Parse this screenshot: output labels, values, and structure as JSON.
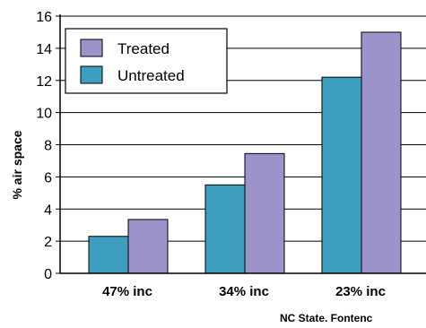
{
  "chart_data": {
    "type": "bar",
    "categories": [
      "47% inc",
      "34% inc",
      "23% inc"
    ],
    "series": [
      {
        "name": "Untreated",
        "values": [
          2.3,
          5.5,
          12.2
        ],
        "color": "#3d9fbd"
      },
      {
        "name": "Treated",
        "values": [
          3.35,
          7.45,
          15.0
        ],
        "color": "#9b93c9"
      }
    ],
    "ylabel": "% air space",
    "ylim": [
      0,
      16
    ],
    "yticks": [
      0,
      2,
      4,
      6,
      8,
      10,
      12,
      14,
      16
    ],
    "grid": true,
    "legend": {
      "placement": "top-left",
      "entries": [
        {
          "label": "Treated",
          "color": "#9b93c9"
        },
        {
          "label": "Untreated",
          "color": "#3d9fbd"
        }
      ]
    },
    "credit": "NC State. Fontenc"
  }
}
